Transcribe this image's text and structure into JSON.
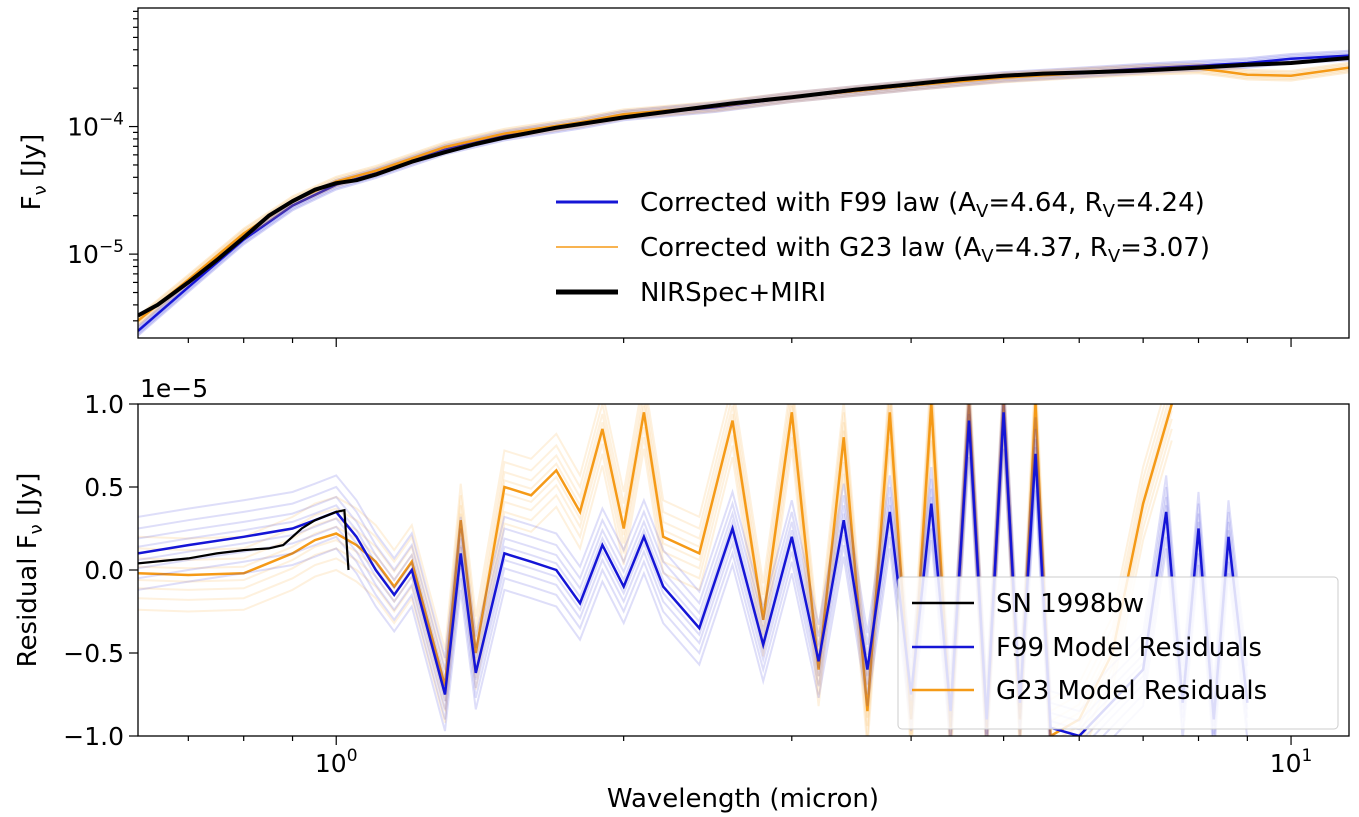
{
  "chart_data": [
    {
      "type": "line",
      "panel": "top",
      "ylabel": "Fν [Jy]",
      "yscale": "log",
      "xscale": "log",
      "xlim": [
        0.62,
        11.5
      ],
      "ylim": [
        2.2e-06,
        0.00085
      ],
      "yticks": [
        {
          "value": 1e-05,
          "base": "10",
          "exp": "−5"
        },
        {
          "value": 0.0001,
          "base": "10",
          "exp": "−4"
        }
      ],
      "legend_position": "lower-right",
      "series": [
        {
          "name": "Corrected with F99 law (AV=4.64, RV=4.24)",
          "legend_parts": [
            "Corrected with F99 law (A",
            "V",
            "=4.64, R",
            "V",
            "=4.24)"
          ],
          "color": "#1515d6",
          "x": [
            0.62,
            0.7,
            0.8,
            0.9,
            1.0,
            1.1,
            1.3,
            1.5,
            1.8,
            2.0,
            2.5,
            3.0,
            4.0,
            5.0,
            6.0,
            7.0,
            8.0,
            9.0,
            10.0,
            11.5
          ],
          "y": [
            2.5e-06,
            5.5e-06,
            1.3e-05,
            2.4e-05,
            3.5e-05,
            4.3e-05,
            6.6e-05,
            8.5e-05,
            0.000105,
            0.000122,
            0.000142,
            0.00017,
            0.00021,
            0.000245,
            0.000265,
            0.000285,
            0.0003,
            0.000315,
            0.00034,
            0.00036
          ]
        },
        {
          "name": "Corrected with G23 law (AV=4.37, RV=3.07)",
          "legend_parts": [
            "Corrected with G23 law (A",
            "V",
            "=4.37, R",
            "V",
            "=3.07)"
          ],
          "color": "#f59a17",
          "x": [
            0.62,
            0.7,
            0.8,
            0.9,
            1.0,
            1.1,
            1.3,
            1.5,
            1.8,
            2.0,
            2.5,
            3.0,
            4.0,
            5.0,
            6.0,
            7.0,
            8.0,
            8.5,
            9.0,
            10.0,
            11.5
          ],
          "y": [
            3e-06,
            6.3e-06,
            1.45e-05,
            2.6e-05,
            3.7e-05,
            4.5e-05,
            6.9e-05,
            8.8e-05,
            0.000108,
            0.000125,
            0.000144,
            0.00017,
            0.00021,
            0.000242,
            0.000262,
            0.000278,
            0.000285,
            0.00027,
            0.000255,
            0.00025,
            0.00029
          ]
        },
        {
          "name": "NIRSpec+MIRI",
          "color": "#000000",
          "x": [
            0.62,
            0.65,
            0.7,
            0.75,
            0.8,
            0.85,
            0.9,
            0.95,
            1.0,
            1.05,
            1.1,
            1.2,
            1.3,
            1.4,
            1.5,
            1.7,
            2.0,
            2.3,
            2.6,
            3.0,
            3.5,
            4.0,
            4.5,
            5.0,
            5.5,
            6.0,
            7.0,
            8.0,
            9.0,
            10.0,
            11.5
          ],
          "y": [
            3.3e-06,
            4e-06,
            6e-06,
            9e-06,
            1.35e-05,
            2e-05,
            2.6e-05,
            3.2e-05,
            3.6e-05,
            3.8e-05,
            4.2e-05,
            5.3e-05,
            6.3e-05,
            7.3e-05,
            8.2e-05,
            9.8e-05,
            0.000118,
            0.000135,
            0.000152,
            0.00017,
            0.000195,
            0.000215,
            0.000235,
            0.00025,
            0.00026,
            0.000265,
            0.000275,
            0.00029,
            0.000305,
            0.000315,
            0.000345
          ]
        }
      ]
    },
    {
      "type": "line",
      "panel": "bottom",
      "xlabel": "Wavelength (micron)",
      "ylabel": "Residual Fν [Jy]",
      "xscale": "log",
      "xlim": [
        0.62,
        11.5
      ],
      "ylim": [
        -1.0,
        1.0
      ],
      "offset_label": "1e−5",
      "xticks": [
        {
          "value": 1,
          "base": "10",
          "exp": "0"
        },
        {
          "value": 10,
          "base": "10",
          "exp": "1"
        }
      ],
      "yticks": [
        {
          "value": 1.0,
          "label": "1.0"
        },
        {
          "value": 0.5,
          "label": "0.5"
        },
        {
          "value": 0.0,
          "label": "0.0"
        },
        {
          "value": -0.5,
          "label": "−0.5"
        },
        {
          "value": -1.0,
          "label": "−1.0"
        }
      ],
      "legend_position": "lower-right",
      "series": [
        {
          "name": "SN 1998bw",
          "color": "#000000",
          "x": [
            0.62,
            0.7,
            0.75,
            0.8,
            0.85,
            0.88,
            0.92,
            0.95,
            0.98,
            1.0,
            1.02,
            1.03
          ],
          "y": [
            0.04,
            0.07,
            0.1,
            0.12,
            0.13,
            0.15,
            0.25,
            0.3,
            0.33,
            0.35,
            0.36,
            0.0
          ]
        },
        {
          "name": "F99 Model Residuals",
          "color": "#1515d6",
          "x": [
            0.62,
            0.7,
            0.8,
            0.9,
            0.95,
            1.0,
            1.05,
            1.1,
            1.15,
            1.2,
            1.3,
            1.35,
            1.4,
            1.5,
            1.6,
            1.7,
            1.8,
            1.9,
            2.0,
            2.1,
            2.2,
            2.4,
            2.6,
            2.8,
            3.0,
            3.2,
            3.4,
            3.6,
            3.8,
            4.0,
            4.2,
            4.4,
            4.6,
            4.8,
            5.0,
            5.2,
            5.4,
            5.6,
            6.0,
            7.0,
            7.4,
            7.7,
            8.0,
            8.3,
            8.6,
            9.0
          ],
          "y": [
            0.1,
            0.15,
            0.2,
            0.25,
            0.3,
            0.35,
            0.2,
            0.0,
            -0.15,
            0.0,
            -0.75,
            0.1,
            -0.62,
            0.1,
            0.05,
            0.0,
            -0.2,
            0.15,
            -0.1,
            0.2,
            -0.1,
            -0.35,
            0.25,
            -0.45,
            0.2,
            -0.55,
            0.3,
            -0.6,
            0.35,
            -0.75,
            0.4,
            -0.85,
            0.9,
            -0.9,
            0.95,
            -0.8,
            0.7,
            -0.95,
            -1.0,
            -0.6,
            0.35,
            -0.8,
            0.25,
            -0.9,
            0.2,
            -0.8
          ]
        },
        {
          "name": "G23 Model Residuals",
          "color": "#f59a17",
          "x": [
            0.62,
            0.7,
            0.8,
            0.9,
            0.95,
            1.0,
            1.05,
            1.1,
            1.15,
            1.2,
            1.3,
            1.35,
            1.4,
            1.5,
            1.6,
            1.7,
            1.8,
            1.9,
            2.0,
            2.1,
            2.2,
            2.4,
            2.6,
            2.8,
            3.0,
            3.2,
            3.4,
            3.6,
            3.8,
            4.0,
            4.2,
            4.4,
            4.6,
            4.8,
            5.0,
            5.2,
            5.4,
            5.6,
            6.0,
            6.5,
            7.0,
            7.5
          ],
          "y": [
            -0.02,
            -0.03,
            -0.02,
            0.1,
            0.18,
            0.22,
            0.15,
            0.05,
            -0.1,
            0.05,
            -0.7,
            0.3,
            -0.5,
            0.5,
            0.45,
            0.6,
            0.35,
            0.85,
            0.25,
            0.95,
            0.2,
            0.1,
            0.9,
            -0.3,
            0.95,
            -0.6,
            0.8,
            -0.85,
            0.95,
            -0.9,
            1.0,
            -0.95,
            1.0,
            -0.95,
            1.0,
            -0.9,
            1.0,
            -1.0,
            -0.9,
            -0.5,
            0.4,
            1.0
          ]
        }
      ]
    }
  ]
}
